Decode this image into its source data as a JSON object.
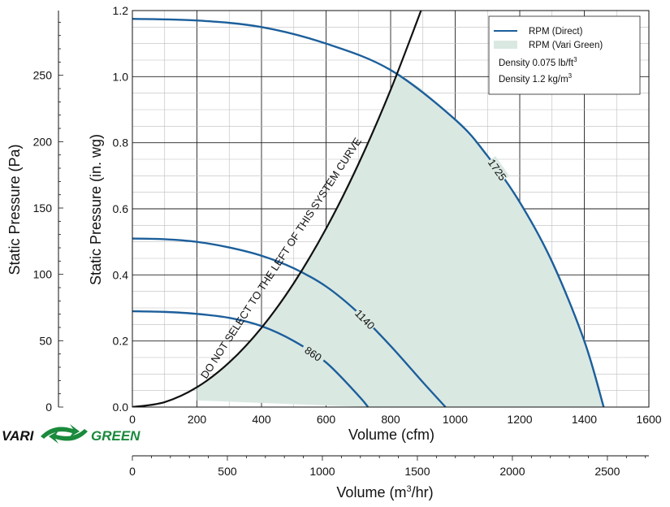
{
  "chart_data": {
    "type": "line",
    "title": "",
    "xlabel": "Volume (cfm)",
    "ylabel": "Static Pressure (in. wg)",
    "secondary_ylabel": "Static Pressure (Pa)",
    "secondary_xlabel": "Volume (m³/hr)",
    "xlim": [
      0,
      1600
    ],
    "ylim": [
      0,
      1.2
    ],
    "x_ticks": [
      0,
      200,
      400,
      600,
      800,
      1000,
      1200,
      1400,
      1600
    ],
    "y_ticks": [
      0.0,
      0.2,
      0.4,
      0.6,
      0.8,
      1.0,
      1.2
    ],
    "y_tick_labels": [
      "0.0",
      "0.2",
      "0.4",
      "0.6",
      "0.8",
      "1.0",
      "1.2"
    ],
    "pa_ticks": [
      0,
      50,
      100,
      150,
      200,
      250
    ],
    "pa_per_inwg": 249,
    "m3hr_ticks": [
      0,
      500,
      1000,
      1500,
      2000,
      2500
    ],
    "cfm_per_m3hr": 0.5886,
    "grid": true,
    "legend_position": "top-right",
    "series": [
      {
        "name": "1725",
        "color": "#1c5f9b",
        "x": [
          0,
          200,
          400,
          600,
          800,
          1000,
          1100,
          1200,
          1300,
          1400,
          1460
        ],
        "y": [
          1.175,
          1.17,
          1.15,
          1.1,
          1.02,
          0.87,
          0.76,
          0.62,
          0.44,
          0.2,
          0.0
        ]
      },
      {
        "name": "1140",
        "color": "#1c5f9b",
        "x": [
          0,
          100,
          200,
          300,
          400,
          500,
          600,
          700,
          800,
          900,
          970
        ],
        "y": [
          0.51,
          0.508,
          0.5,
          0.483,
          0.458,
          0.42,
          0.365,
          0.285,
          0.185,
          0.075,
          0.0
        ]
      },
      {
        "name": "860",
        "color": "#1c5f9b",
        "x": [
          0,
          100,
          200,
          300,
          400,
          500,
          600,
          700,
          730
        ],
        "y": [
          0.29,
          0.288,
          0.282,
          0.27,
          0.245,
          0.2,
          0.135,
          0.035,
          0.0
        ]
      }
    ],
    "system_curve": {
      "label": "DO NOT SELECT TO THE LEFT OF THIS SYSTEM CURVE",
      "color": "#111111",
      "x": [
        0,
        100,
        200,
        300,
        400,
        500,
        600,
        700,
        800,
        900
      ],
      "y": [
        0.0,
        0.015,
        0.06,
        0.135,
        0.24,
        0.375,
        0.54,
        0.735,
        0.96,
        1.215
      ]
    },
    "shaded_region": {
      "name": "RPM (Vari Green)",
      "color": "#dae8e2",
      "x": [
        200,
        300,
        400,
        500,
        600,
        700,
        800,
        825,
        900,
        1000,
        1100,
        1200,
        1300,
        1400,
        1460,
        1460,
        730,
        200
      ],
      "y": [
        0.06,
        0.135,
        0.24,
        0.375,
        0.54,
        0.735,
        0.96,
        1.01,
        0.96,
        0.87,
        0.76,
        0.62,
        0.44,
        0.2,
        0.0,
        0.0,
        0.0,
        0.02
      ]
    },
    "legend": {
      "direct_label": "RPM (Direct)",
      "vari_label": "RPM (Vari Green)",
      "density_imperial": "Density 0.075 lb/ft",
      "density_imperial_sup": "3",
      "density_metric": "Density 1.2 kg/m",
      "density_metric_sup": "3"
    }
  },
  "logo": {
    "left": "VARI",
    "right": "GREEN",
    "left_color": "#111111",
    "right_color": "#1a8a3c"
  }
}
